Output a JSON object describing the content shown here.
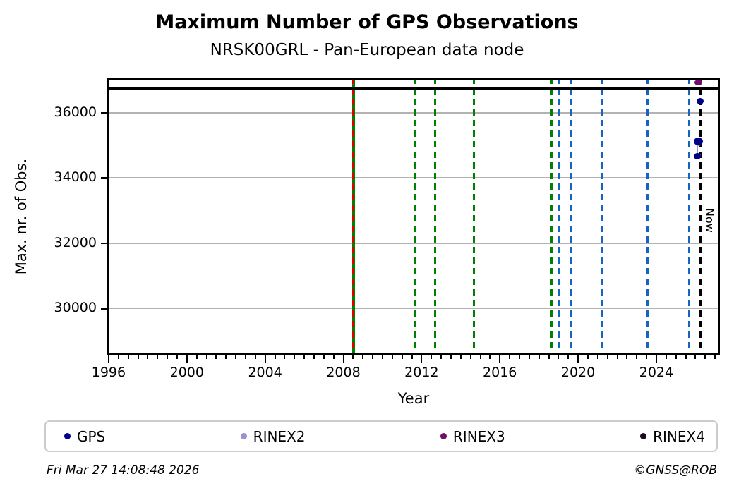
{
  "header": {
    "title": "Maximum Number of GPS Observations",
    "subtitle": "NRSK00GRL - Pan-European data node"
  },
  "footer": {
    "timestamp": "Fri Mar 27 14:08:48 2026",
    "credit": "©GNSS@ROB"
  },
  "legend": {
    "items": [
      {
        "label": "GPS",
        "color": "#00008b"
      },
      {
        "label": "RINEX2",
        "color": "#9793cd"
      },
      {
        "label": "RINEX3",
        "color": "#760d6a"
      },
      {
        "label": "RINEX4",
        "color": "#1c0b1e"
      }
    ]
  },
  "chart_data": {
    "type": "scatter",
    "title": "Maximum Number of GPS Observations",
    "subtitle": "NRSK00GRL - Pan-European data node",
    "xlabel": "Year",
    "ylabel": "Max. nr. of Obs.",
    "xlim": [
      1995.93,
      2027.25
    ],
    "ylim": [
      28550,
      37085
    ],
    "xticks": [
      1996,
      2000,
      2004,
      2008,
      2012,
      2016,
      2020,
      2024
    ],
    "minor_tick_step": 0.5,
    "yticks": [
      30000,
      32000,
      34000,
      36000
    ],
    "grid": "horizontal",
    "grid_color": "#b3b3b3",
    "top_line_value": 36760,
    "now": {
      "year": 2026.24,
      "label": "Now",
      "color": "#000000"
    },
    "event_lines": [
      {
        "year": 2008.52,
        "color": "#008000",
        "style": "solid",
        "width": 4
      },
      {
        "year": 2008.52,
        "color": "#dd0000",
        "style": "dashed",
        "width": 3
      },
      {
        "year": 2011.67,
        "color": "#008000",
        "style": "dashed",
        "width": 3
      },
      {
        "year": 2012.7,
        "color": "#008000",
        "style": "dashed",
        "width": 3
      },
      {
        "year": 2014.66,
        "color": "#008000",
        "style": "dashed",
        "width": 3
      },
      {
        "year": 2018.63,
        "color": "#008000",
        "style": "dashed",
        "width": 3
      },
      {
        "year": 2018.99,
        "color": "#1565c0",
        "style": "dashed",
        "width": 3
      },
      {
        "year": 2019.65,
        "color": "#1565c0",
        "style": "dashed",
        "width": 3
      },
      {
        "year": 2021.26,
        "color": "#1565c0",
        "style": "dashed",
        "width": 3
      },
      {
        "year": 2023.56,
        "color": "#1565c0",
        "style": "dashed",
        "width": 5
      },
      {
        "year": 2025.69,
        "color": "#1565c0",
        "style": "dashed",
        "width": 3
      }
    ],
    "series": [
      {
        "name": "RINEX2",
        "color": "#9793cd",
        "connect": true,
        "points": [
          [
            2026.15,
            35070,
            9,
            8
          ],
          [
            2026.1,
            34680,
            9,
            8
          ]
        ]
      },
      {
        "name": "GPS",
        "color": "#00008b",
        "points": [
          [
            2026.23,
            36350,
            10,
            9
          ],
          [
            2026.15,
            35130,
            13,
            11
          ],
          [
            2026.1,
            34660,
            10,
            9
          ]
        ]
      },
      {
        "name": "RINEX3",
        "color": "#760d6a",
        "points": [
          [
            2026.14,
            36930,
            11,
            8
          ]
        ]
      },
      {
        "name": "RINEX4",
        "color": "#1c0b1e",
        "points": []
      }
    ]
  }
}
